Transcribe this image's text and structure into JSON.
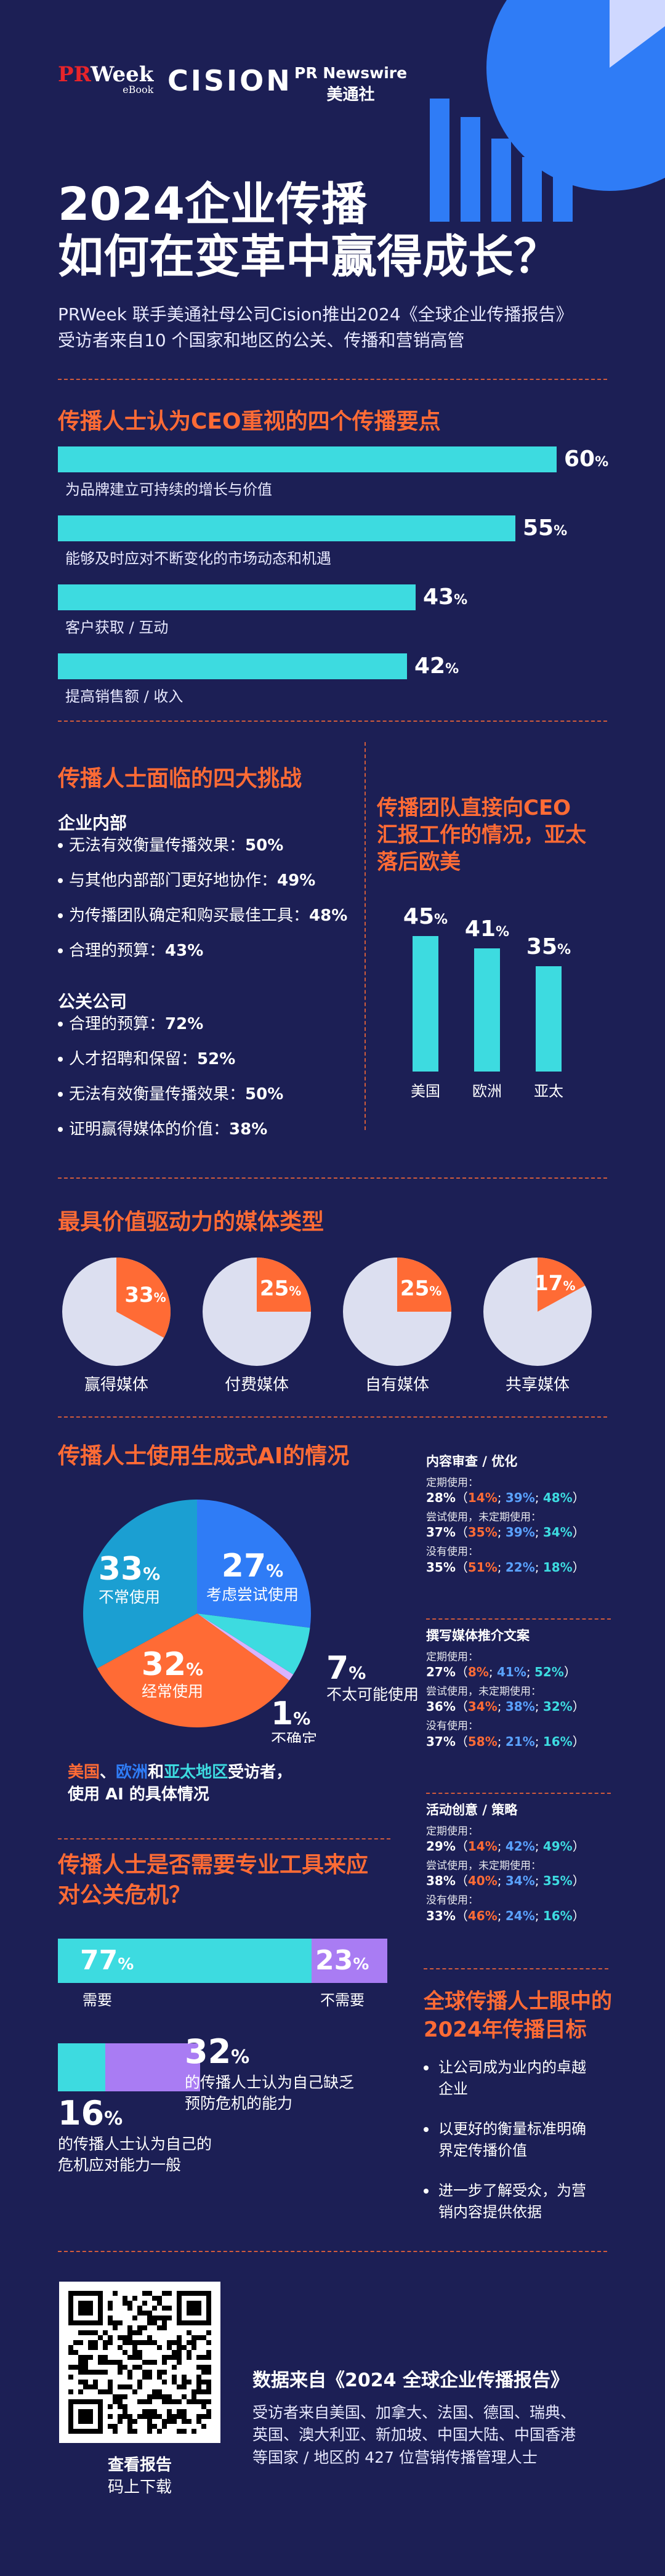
{
  "logos": {
    "prweek_main": "PRWeek",
    "prweek_sub": "eBook",
    "cision": "CISION",
    "prn_main": "PR Newswire",
    "prn_sub": "美通社"
  },
  "hero": {
    "title_line1": "2024企业传播",
    "title_line2": "如何在变革中赢得成长？",
    "subtitle_line1": "PRWeek 联手美通社母公司Cision推出2024《全球企业传播报告》",
    "subtitle_line2": "受访者来自10 个国家和地区的公关、传播和营销高管"
  },
  "ceo_focus": {
    "title": "传播人士认为CEO重视的四个传播要点",
    "items": [
      {
        "value": 60,
        "num": "60",
        "unit": "%",
        "label": "为品牌建立可持续的增长与价值"
      },
      {
        "value": 55,
        "num": "55",
        "unit": "%",
        "label": "能够及时应对不断变化的市场动态和机遇"
      },
      {
        "value": 43,
        "num": "43",
        "unit": "%",
        "label": "客户获取 / 互动"
      },
      {
        "value": 42,
        "num": "42",
        "unit": "%",
        "label": "提高销售额 / 收入"
      }
    ]
  },
  "challenges": {
    "title": "传播人士面临的四大挑战",
    "internal_head": "企业内部",
    "internal": [
      {
        "text": "无法有效衡量传播效果：",
        "val": "50%"
      },
      {
        "text": "与其他内部部门更好地协作：",
        "val": "49%"
      },
      {
        "text": "为传播团队确定和购买最佳工具：",
        "val": "48%"
      },
      {
        "text": "合理的预算：",
        "val": "43%"
      }
    ],
    "agency_head": "公关公司",
    "agency": [
      {
        "text": "合理的预算：",
        "val": "72%"
      },
      {
        "text": "人才招聘和保留：",
        "val": "52%"
      },
      {
        "text": "无法有效衡量传播效果：",
        "val": "50%"
      },
      {
        "text": "证明赢得媒体的价值：",
        "val": "38%"
      }
    ]
  },
  "ceo_report": {
    "title_line1": "传播团队直接向CEO",
    "title_line2": "汇报工作的情况，亚太",
    "title_line3": "落后欧美",
    "bars": [
      {
        "value": 45,
        "num": "45",
        "unit": "%",
        "label": "美国"
      },
      {
        "value": 41,
        "num": "41",
        "unit": "%",
        "label": "欧洲"
      },
      {
        "value": 35,
        "num": "35",
        "unit": "%",
        "label": "亚太"
      }
    ]
  },
  "media_types": {
    "title": "最具价值驱动力的媒体类型",
    "pies": [
      {
        "value": 33,
        "num": "33",
        "unit": "%",
        "label": "赢得媒体"
      },
      {
        "value": 25,
        "num": "25",
        "unit": "%",
        "label": "付费媒体"
      },
      {
        "value": 25,
        "num": "25",
        "unit": "%",
        "label": "自有媒体"
      },
      {
        "value": 17,
        "num": "17",
        "unit": "%",
        "label": "共享媒体"
      }
    ]
  },
  "ai_usage": {
    "title": "传播人士使用生成式AI的情况",
    "slices": [
      {
        "value": 27,
        "num": "27",
        "unit": "%",
        "label": "考虑尝试使用",
        "color": "#2f7cf6"
      },
      {
        "value": 7,
        "num": "7",
        "unit": "%",
        "label": "不太可能使用",
        "color": "#3ddbe0"
      },
      {
        "value": 1,
        "num": "1",
        "unit": "%",
        "label": "不确定",
        "color": "#d9b3ff"
      },
      {
        "value": 32,
        "num": "32",
        "unit": "%",
        "label": "经常使用",
        "color": "#ff6b35"
      },
      {
        "value": 33,
        "num": "33",
        "unit": "%",
        "label": "不常使用",
        "color": "#1b9fd2"
      }
    ],
    "note_p1": "美国",
    "note_p2": "、",
    "note_p3": "欧洲",
    "note_p4": "和",
    "note_p5": "亚太地区",
    "note_p6": "受访者，",
    "note_line2": "使用 AI 的具体情况"
  },
  "ai_details": [
    {
      "title": "内容审查 / 优化",
      "rows": [
        {
          "cap": "定期使用：",
          "v": "28%",
          "a": "14%",
          "b": "39%",
          "c": "48%"
        },
        {
          "cap": "尝试使用，未定期使用：",
          "v": "37%",
          "a": "35%",
          "b": "39%",
          "c": "34%"
        },
        {
          "cap": "没有使用：",
          "v": "35%",
          "a": "51%",
          "b": "22%",
          "c": "18%"
        }
      ]
    },
    {
      "title": "撰写媒体推介文案",
      "rows": [
        {
          "cap": "定期使用：",
          "v": "27%",
          "a": "8%",
          "b": "41%",
          "c": "52%"
        },
        {
          "cap": "尝试使用，未定期使用：",
          "v": "36%",
          "a": "34%",
          "b": "38%",
          "c": "32%"
        },
        {
          "cap": "没有使用：",
          "v": "37%",
          "a": "58%",
          "b": "21%",
          "c": "16%"
        }
      ]
    },
    {
      "title": "活动创意 / 策略",
      "rows": [
        {
          "cap": "定期使用：",
          "v": "29%",
          "a": "14%",
          "b": "42%",
          "c": "49%"
        },
        {
          "cap": "尝试使用，未定期使用：",
          "v": "38%",
          "a": "40%",
          "b": "34%",
          "c": "35%"
        },
        {
          "cap": "没有使用：",
          "v": "33%",
          "a": "46%",
          "b": "24%",
          "c": "16%"
        }
      ]
    }
  ],
  "crisis": {
    "title_line1": "传播人士是否需要专业工具来应",
    "title_line2": "对公关危机？",
    "need": {
      "value": 77,
      "num": "77",
      "unit": "%",
      "label": "需要"
    },
    "no_need": {
      "value": 23,
      "num": "23",
      "unit": "%",
      "label": "不需要"
    },
    "lack": {
      "value": 32,
      "num": "32",
      "unit": "%",
      "line1": "的传播人士认为自己缺乏",
      "line2": "预防危机的能力"
    },
    "weak": {
      "value": 16,
      "num": "16",
      "unit": "%",
      "line1": "的传播人士认为自己的",
      "line2": "危机应对能力一般"
    }
  },
  "goals": {
    "title_line1": "全球传播人士眼中的",
    "title_line2": "2024年传播目标",
    "items": [
      {
        "line1": "让公司成为业内的卓越",
        "line2": "企业"
      },
      {
        "line1": "以更好的衡量标准明确",
        "line2": "界定传播价值"
      },
      {
        "line1": "进一步了解受众，为营",
        "line2": "销内容提供依据"
      }
    ]
  },
  "footer": {
    "qr_line1": "查看报告",
    "qr_line2": "码上下载",
    "source_title": "数据来自《2024 全球企业传播报告》",
    "source_l1": "受访者来自美国、加拿大、法国、德国、瑞典、",
    "source_l2": "英国、澳大利亚、新加坡、中国大陆、中国香港",
    "source_l3": "等国家 / 地区的 427 位营销传播管理人士"
  },
  "colors": {
    "bg": "#1c1f55",
    "accent": "#ff6b35",
    "cyan": "#3ddbe0",
    "blue": "#2f7cf6",
    "purple": "#a97cf3",
    "pie_base": "#dcdff0"
  }
}
